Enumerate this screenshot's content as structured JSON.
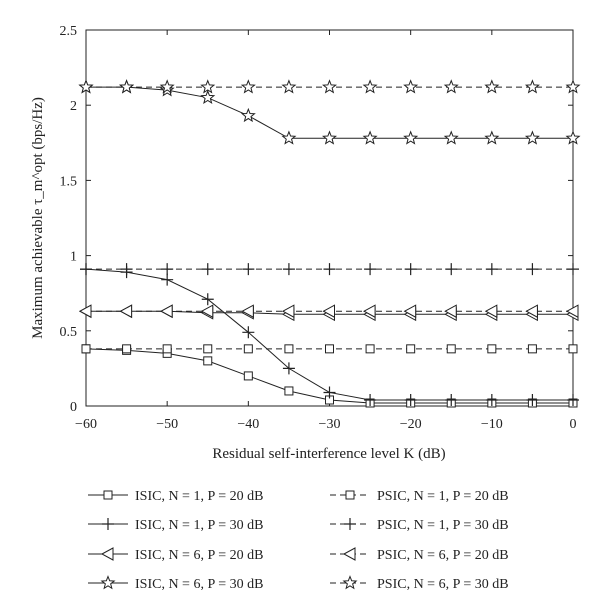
{
  "chart_data": {
    "type": "line",
    "xlabel": "Residual self-interference level K (dB)",
    "ylabel": "Maximum achievable τ_m^opt (bps/Hz)",
    "xlim": [
      -60,
      0
    ],
    "ylim": [
      0,
      2.5
    ],
    "x_ticks": [
      -60,
      -50,
      -40,
      -30,
      -20,
      -10,
      0
    ],
    "x_tick_labels": [
      "−60",
      "−50",
      "−40",
      "−30",
      "−20",
      "−10",
      "0"
    ],
    "y_ticks": [
      0,
      0.5,
      1,
      1.5,
      2,
      2.5
    ],
    "y_tick_labels": [
      "0",
      "0.5",
      "1",
      "1.5",
      "2",
      "2.5"
    ],
    "grid": false,
    "legend_position": "below",
    "x": [
      -60,
      -55,
      -50,
      -45,
      -40,
      -35,
      -30,
      -25,
      -20,
      -15,
      -10,
      -5,
      0
    ],
    "series": [
      {
        "name": "ISIC, N = 1, P = 20 dB",
        "marker": "square",
        "dash": "solid",
        "values": [
          0.38,
          0.37,
          0.35,
          0.3,
          0.2,
          0.1,
          0.04,
          0.02,
          0.02,
          0.02,
          0.02,
          0.02,
          0.02
        ]
      },
      {
        "name": "ISIC, N = 1, P = 30 dB",
        "marker": "plus",
        "dash": "solid",
        "values": [
          0.91,
          0.89,
          0.84,
          0.71,
          0.49,
          0.25,
          0.09,
          0.04,
          0.04,
          0.04,
          0.04,
          0.04,
          0.04
        ]
      },
      {
        "name": "ISIC, N = 6, P = 20 dB",
        "marker": "triangle-left",
        "dash": "solid",
        "values": [
          0.63,
          0.63,
          0.63,
          0.62,
          0.62,
          0.61,
          0.61,
          0.61,
          0.61,
          0.61,
          0.61,
          0.61,
          0.61
        ]
      },
      {
        "name": "ISIC, N = 6, P = 30 dB",
        "marker": "star",
        "dash": "solid",
        "values": [
          2.12,
          2.12,
          2.1,
          2.05,
          1.93,
          1.78,
          1.78,
          1.78,
          1.78,
          1.78,
          1.78,
          1.78,
          1.78
        ]
      },
      {
        "name": "PSIC, N = 1, P = 20 dB",
        "marker": "square",
        "dash": "dashed",
        "values": [
          0.38,
          0.38,
          0.38,
          0.38,
          0.38,
          0.38,
          0.38,
          0.38,
          0.38,
          0.38,
          0.38,
          0.38,
          0.38
        ]
      },
      {
        "name": "PSIC, N = 1, P = 30 dB",
        "marker": "plus",
        "dash": "dashed",
        "values": [
          0.91,
          0.91,
          0.91,
          0.91,
          0.91,
          0.91,
          0.91,
          0.91,
          0.91,
          0.91,
          0.91,
          0.91,
          0.91
        ]
      },
      {
        "name": "PSIC, N = 6, P = 20 dB",
        "marker": "triangle-left",
        "dash": "dashed",
        "values": [
          0.63,
          0.63,
          0.63,
          0.63,
          0.63,
          0.63,
          0.63,
          0.63,
          0.63,
          0.63,
          0.63,
          0.63,
          0.63
        ]
      },
      {
        "name": "PSIC, N = 6, P = 30 dB",
        "marker": "star",
        "dash": "dashed",
        "values": [
          2.12,
          2.12,
          2.12,
          2.12,
          2.12,
          2.12,
          2.12,
          2.12,
          2.12,
          2.12,
          2.12,
          2.12,
          2.12
        ]
      }
    ],
    "colors": {
      "line": "#222222",
      "background": "#ffffff"
    }
  }
}
